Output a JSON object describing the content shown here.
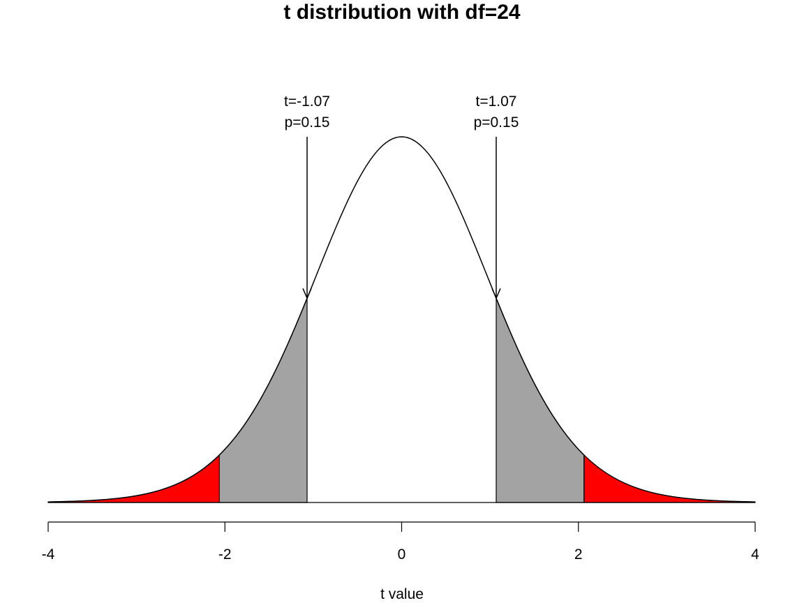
{
  "chart_data": {
    "type": "area",
    "title": "t distribution with df=24",
    "xlabel": "t value",
    "ylabel": "",
    "df": 24,
    "xlim": [
      -4,
      4
    ],
    "x_ticks": [
      -4,
      -2,
      0,
      2,
      4
    ],
    "x_tick_labels": [
      "-4",
      "-2",
      "0",
      "2",
      "4"
    ],
    "grid": false,
    "critical_t": 2.064,
    "series": [
      {
        "name": "",
        "kind": "density-curve",
        "color": "#000000"
      },
      {
        "name": "",
        "kind": "shaded-region",
        "from": -4,
        "to": -2.064,
        "color": "#ff0000"
      },
      {
        "name": "",
        "kind": "shaded-region",
        "from": -2.064,
        "to": -1.07,
        "color": "#a3a3a3"
      },
      {
        "name": "",
        "kind": "shaded-region",
        "from": 1.07,
        "to": 2.064,
        "color": "#a3a3a3"
      },
      {
        "name": "",
        "kind": "shaded-region",
        "from": 2.064,
        "to": 4,
        "color": "#ff0000"
      }
    ],
    "annotations": [
      {
        "x": -1.07,
        "line1": "t=-1.07",
        "line2": "p=0.15"
      },
      {
        "x": 1.07,
        "line1": "t=1.07",
        "line2": "p=0.15"
      }
    ]
  }
}
